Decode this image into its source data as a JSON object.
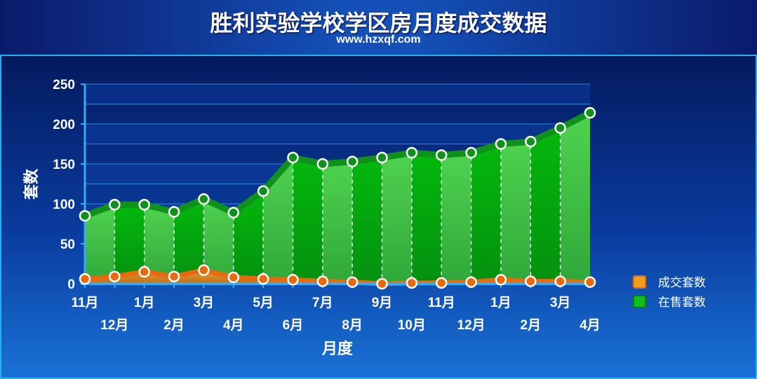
{
  "header": {
    "title": "胜利实验学校学区房月度成交数据",
    "subtitle": "www.hzxqf.com"
  },
  "colors": {
    "background": "#0a1f7a",
    "sold_line": "#e86a10",
    "sold_fill": "#f0a040",
    "sale_line": "#10901c",
    "sale_fill_light": "#4fd24f",
    "sale_fill_dark": "#03b80c",
    "grid": "#2e9ef0",
    "axis": "#3aa8f4"
  },
  "chart_data": {
    "type": "area",
    "xlabel": "月度",
    "ylabel": "套数",
    "ylim": [
      0,
      250
    ],
    "yticks": [
      "0",
      "50",
      "100",
      "150",
      "200",
      "250"
    ],
    "categories": [
      "11月",
      "12月",
      "1月",
      "2月",
      "3月",
      "4月",
      "5月",
      "6月",
      "7月",
      "8月",
      "9月",
      "10月",
      "11月",
      "12月",
      "1月",
      "2月",
      "3月",
      "4月"
    ],
    "series": [
      {
        "name": "成交套数",
        "color": "#e86a10",
        "values": [
          6,
          9,
          15,
          9,
          17,
          8,
          6,
          5,
          3,
          2,
          0,
          1,
          1,
          2,
          5,
          3,
          3,
          2
        ]
      },
      {
        "name": "在售套数",
        "color": "#10a01c",
        "values": [
          85,
          99,
          99,
          90,
          106,
          89,
          116,
          158,
          150,
          153,
          158,
          164,
          161,
          164,
          175,
          178,
          195,
          214
        ]
      }
    ],
    "legend_position": "right",
    "grid": true
  }
}
